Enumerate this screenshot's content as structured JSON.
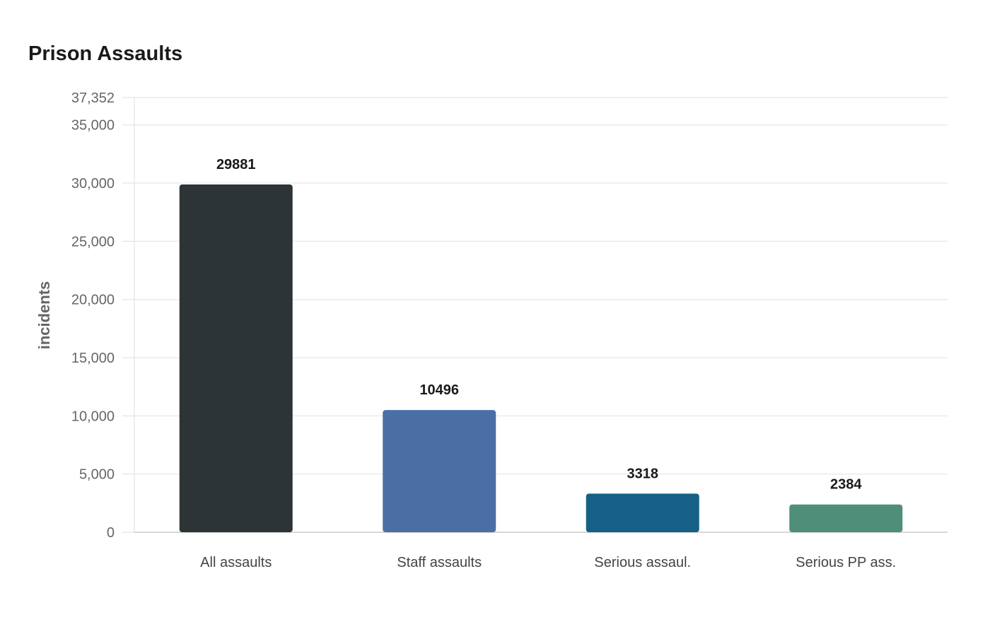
{
  "chart_data": {
    "type": "bar",
    "title": "Prison Assaults",
    "xlabel": "",
    "ylabel": "incidents",
    "categories": [
      "All assaults",
      "Staff assaults",
      "Serious assaul.",
      "Serious PP ass."
    ],
    "values": [
      29881,
      10496,
      3318,
      2384
    ],
    "data_labels": [
      "29881",
      "10496",
      "3318",
      "2384"
    ],
    "colors": [
      "#2d3436",
      "#4a6fa5",
      "#166088",
      "#4f8f7a"
    ],
    "ylim": [
      0,
      37352
    ],
    "yticks": [
      0,
      5000,
      10000,
      15000,
      20000,
      25000,
      30000,
      35000,
      37352
    ],
    "ytick_labels": [
      "0",
      "5,000",
      "10,000",
      "15,000",
      "20,000",
      "25,000",
      "30,000",
      "35,000",
      "37,352"
    ],
    "grid": true,
    "legend": "none"
  }
}
